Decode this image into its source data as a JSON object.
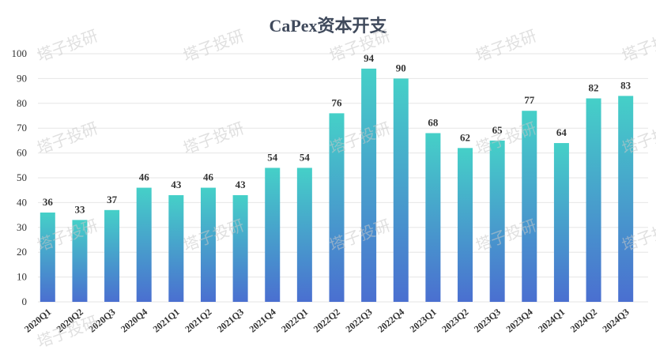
{
  "chart_data": {
    "type": "bar",
    "title": "CaPex资本开支",
    "xlabel": "",
    "ylabel": "",
    "ylim": [
      0,
      100
    ],
    "yticks": [
      0,
      10,
      20,
      30,
      40,
      50,
      60,
      70,
      80,
      90,
      100
    ],
    "grid": true,
    "categories": [
      "2020Q1",
      "2020Q2",
      "2020Q3",
      "2020Q4",
      "2021Q1",
      "2021Q2",
      "2021Q3",
      "2021Q4",
      "2022Q1",
      "2022Q2",
      "2022Q3",
      "2022Q4",
      "2023Q1",
      "2023Q2",
      "2023Q3",
      "2023Q4",
      "2024Q1",
      "2024Q2",
      "2024Q3"
    ],
    "values": [
      36,
      33,
      37,
      46,
      43,
      46,
      43,
      54,
      54,
      76,
      94,
      90,
      68,
      62,
      65,
      77,
      64,
      82,
      83
    ],
    "colors": {
      "bar_top": "#45d0c8",
      "bar_bottom": "#4a6fd0"
    }
  },
  "watermark": {
    "text": "塔子投研",
    "count": 16
  }
}
